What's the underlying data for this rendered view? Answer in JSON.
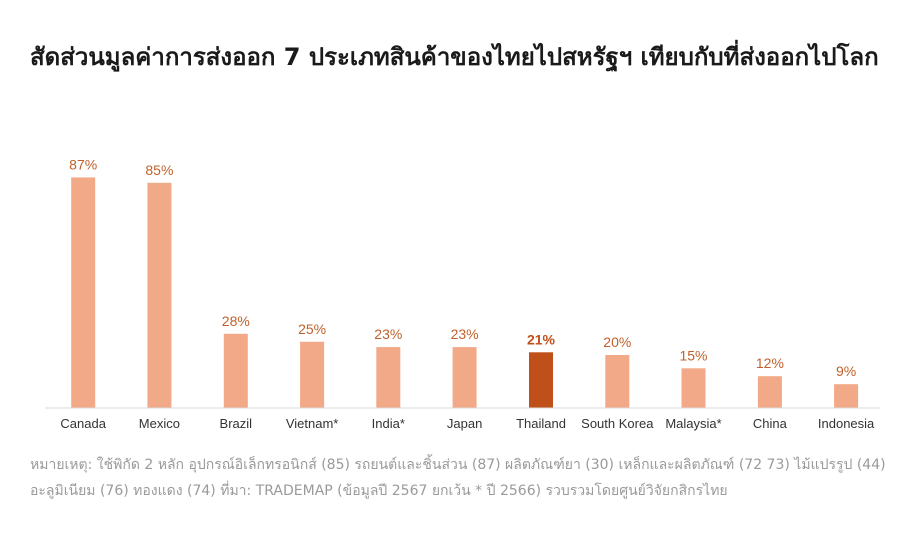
{
  "chart_data": {
    "type": "bar",
    "title": "สัดส่วนมูลค่าการส่งออก 7 ประเภทสินค้าของไทยไปสหรัฐฯ เทียบกับที่ส่งออกไปโลก",
    "categories": [
      "Canada",
      "Mexico",
      "Brazil",
      "Vietnam*",
      "India*",
      "Japan",
      "Thailand",
      "South Korea",
      "Malaysia*",
      "China",
      "Indonesia"
    ],
    "values": [
      87,
      85,
      28,
      25,
      23,
      23,
      21,
      20,
      15,
      12,
      9
    ],
    "value_labels": [
      "87%",
      "85%",
      "28%",
      "25%",
      "23%",
      "23%",
      "21%",
      "20%",
      "15%",
      "12%",
      "9%"
    ],
    "highlight": "Thailand",
    "ylim": [
      0,
      100
    ],
    "grid": false,
    "colors": {
      "bar": "#f2a987",
      "highlight": "#c0501a",
      "label": "#c0612b"
    }
  },
  "note": "หมายเหตุ: ใช้พิกัด 2 หลัก อุปกรณ์อิเล็กทรอนิกส์ (85) รถยนต์และชิ้นส่วน (87) ผลิตภัณฑ์ยา (30) เหล็กและผลิตภัณฑ์ (72 73) ไม้แปรรูป (44) อะลูมิเนียม (76) ทองแดง (74) ที่มา: TRADEMAP (ข้อมูลปี 2567 ยกเว้น * ปี 2566) รวบรวมโดยศูนย์วิจัยกสิกรไทย"
}
